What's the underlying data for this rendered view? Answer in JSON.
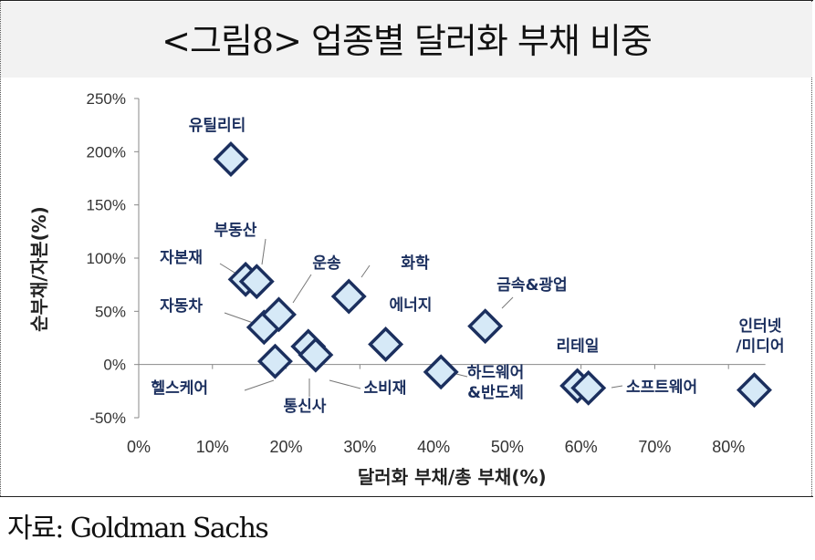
{
  "title": "<그림8> 업종별 달러화 부채 비중",
  "source": "자료: Goldman Sachs",
  "colors": {
    "marker_fill": "#d6e9f7",
    "marker_stroke": "#1b2f5e",
    "label": "#1b2f5e",
    "axis_text": "#333333"
  },
  "chart_data": {
    "type": "scatter",
    "xlabel": "달러화 부채/총 부채(%)",
    "ylabel": "순부채/자본(%)",
    "xlim": [
      0,
      85
    ],
    "ylim": [
      -50,
      250
    ],
    "xticks": [
      0,
      10,
      20,
      30,
      40,
      50,
      60,
      70,
      80
    ],
    "xtick_labels": [
      "0%",
      "10%",
      "20%",
      "30%",
      "40%",
      "50%",
      "60%",
      "70%",
      "80%"
    ],
    "yticks": [
      -50,
      0,
      50,
      100,
      150,
      200,
      250
    ],
    "ytick_labels": [
      "-50%",
      "0%",
      "50%",
      "100%",
      "150%",
      "200%",
      "250%"
    ],
    "grid": false,
    "points": [
      {
        "label": "유틸리티",
        "x": 12.5,
        "y": 193
      },
      {
        "label": "자본재",
        "x": 14.5,
        "y": 80
      },
      {
        "label": "부동산",
        "x": 16,
        "y": 78
      },
      {
        "label": "자동차",
        "x": 17,
        "y": 35
      },
      {
        "label": "운송",
        "x": 19,
        "y": 47
      },
      {
        "label": "헬스케어",
        "x": 18.5,
        "y": 3
      },
      {
        "label": "통신사",
        "x": 23,
        "y": 17
      },
      {
        "label": "소비재",
        "x": 24,
        "y": 9
      },
      {
        "label": "화학",
        "x": 28.5,
        "y": 64
      },
      {
        "label": "에너지",
        "x": 33.5,
        "y": 19
      },
      {
        "label": "하드웨어\n&반도체",
        "x": 41,
        "y": -7
      },
      {
        "label": "금속&광업",
        "x": 47,
        "y": 36
      },
      {
        "label": "리테일",
        "x": 59.5,
        "y": -20
      },
      {
        "label": "소프트웨어",
        "x": 61,
        "y": -22
      },
      {
        "label": "인터넷\n/미디어",
        "x": 83.5,
        "y": -24
      }
    ]
  }
}
